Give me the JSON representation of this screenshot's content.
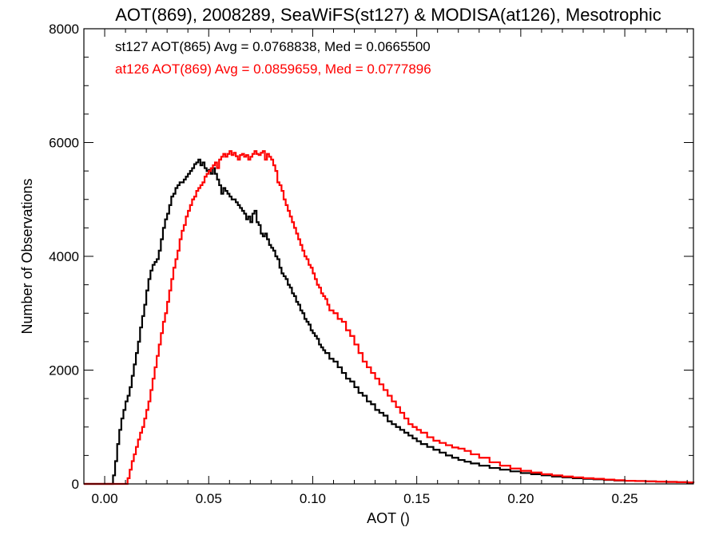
{
  "chart_data": {
    "type": "line",
    "title": "AOT(869), 2008289, SeaWiFS(st127) & MODISA(at126), Mesotrophic",
    "xlabel": "AOT ()",
    "ylabel": "Number of Observations",
    "xlim": [
      -0.01,
      0.283
    ],
    "ylim": [
      0,
      8000
    ],
    "x_ticks": [
      0.0,
      0.05,
      0.1,
      0.15,
      0.2,
      0.25
    ],
    "x_tick_labels": [
      "0.00",
      "0.05",
      "0.10",
      "0.15",
      "0.20",
      "0.25"
    ],
    "y_ticks": [
      0,
      2000,
      4000,
      6000,
      8000
    ],
    "y_tick_labels": [
      "0",
      "2000",
      "4000",
      "6000",
      "8000"
    ],
    "grid": false,
    "step": true,
    "legend_placement": "top-left",
    "series": [
      {
        "name": "st127",
        "legend_text": "st127 AOT(865) Avg = 0.0768838, Med = 0.0665500",
        "color": "#000000",
        "points": [
          [
            -0.01,
            0
          ],
          [
            0.003,
            0
          ],
          [
            0.004,
            150
          ],
          [
            0.005,
            400
          ],
          [
            0.006,
            700
          ],
          [
            0.007,
            950
          ],
          [
            0.008,
            1150
          ],
          [
            0.009,
            1300
          ],
          [
            0.01,
            1450
          ],
          [
            0.011,
            1550
          ],
          [
            0.012,
            1700
          ],
          [
            0.013,
            1900
          ],
          [
            0.014,
            2100
          ],
          [
            0.015,
            2300
          ],
          [
            0.016,
            2500
          ],
          [
            0.017,
            2750
          ],
          [
            0.018,
            2950
          ],
          [
            0.019,
            3150
          ],
          [
            0.02,
            3400
          ],
          [
            0.021,
            3600
          ],
          [
            0.022,
            3750
          ],
          [
            0.023,
            3850
          ],
          [
            0.024,
            3900
          ],
          [
            0.025,
            3950
          ],
          [
            0.026,
            4100
          ],
          [
            0.027,
            4300
          ],
          [
            0.028,
            4500
          ],
          [
            0.029,
            4650
          ],
          [
            0.03,
            4750
          ],
          [
            0.031,
            4900
          ],
          [
            0.032,
            5050
          ],
          [
            0.033,
            5100
          ],
          [
            0.034,
            5200
          ],
          [
            0.035,
            5250
          ],
          [
            0.036,
            5300
          ],
          [
            0.037,
            5300
          ],
          [
            0.038,
            5350
          ],
          [
            0.039,
            5400
          ],
          [
            0.04,
            5450
          ],
          [
            0.041,
            5500
          ],
          [
            0.042,
            5550
          ],
          [
            0.043,
            5620
          ],
          [
            0.044,
            5650
          ],
          [
            0.045,
            5700
          ],
          [
            0.046,
            5600
          ],
          [
            0.047,
            5650
          ],
          [
            0.048,
            5550
          ],
          [
            0.049,
            5500
          ],
          [
            0.05,
            5520
          ],
          [
            0.051,
            5450
          ],
          [
            0.052,
            5550
          ],
          [
            0.053,
            5450
          ],
          [
            0.054,
            5350
          ],
          [
            0.055,
            5250
          ],
          [
            0.056,
            5100
          ],
          [
            0.057,
            5200
          ],
          [
            0.058,
            5150
          ],
          [
            0.059,
            5100
          ],
          [
            0.06,
            5050
          ],
          [
            0.061,
            5000
          ],
          [
            0.062,
            5000
          ],
          [
            0.063,
            4950
          ],
          [
            0.064,
            4900
          ],
          [
            0.065,
            4850
          ],
          [
            0.066,
            4800
          ],
          [
            0.067,
            4750
          ],
          [
            0.068,
            4650
          ],
          [
            0.069,
            4700
          ],
          [
            0.07,
            4600
          ],
          [
            0.071,
            4750
          ],
          [
            0.072,
            4800
          ],
          [
            0.073,
            4600
          ],
          [
            0.074,
            4550
          ],
          [
            0.075,
            4400
          ],
          [
            0.076,
            4350
          ],
          [
            0.077,
            4400
          ],
          [
            0.078,
            4300
          ],
          [
            0.079,
            4200
          ],
          [
            0.08,
            4150
          ],
          [
            0.081,
            4100
          ],
          [
            0.082,
            4000
          ],
          [
            0.083,
            3950
          ],
          [
            0.084,
            3800
          ],
          [
            0.085,
            3700
          ],
          [
            0.086,
            3650
          ],
          [
            0.087,
            3600
          ],
          [
            0.088,
            3500
          ],
          [
            0.089,
            3450
          ],
          [
            0.09,
            3350
          ],
          [
            0.091,
            3300
          ],
          [
            0.092,
            3200
          ],
          [
            0.093,
            3150
          ],
          [
            0.094,
            3050
          ],
          [
            0.095,
            3000
          ],
          [
            0.096,
            2900
          ],
          [
            0.097,
            2850
          ],
          [
            0.098,
            2800
          ],
          [
            0.099,
            2700
          ],
          [
            0.1,
            2650
          ],
          [
            0.101,
            2600
          ],
          [
            0.102,
            2550
          ],
          [
            0.103,
            2450
          ],
          [
            0.104,
            2400
          ],
          [
            0.105,
            2350
          ],
          [
            0.106,
            2300
          ],
          [
            0.108,
            2200
          ],
          [
            0.11,
            2150
          ],
          [
            0.112,
            2050
          ],
          [
            0.114,
            1950
          ],
          [
            0.116,
            1850
          ],
          [
            0.118,
            1800
          ],
          [
            0.12,
            1700
          ],
          [
            0.122,
            1600
          ],
          [
            0.124,
            1550
          ],
          [
            0.126,
            1450
          ],
          [
            0.128,
            1400
          ],
          [
            0.13,
            1300
          ],
          [
            0.132,
            1250
          ],
          [
            0.134,
            1200
          ],
          [
            0.136,
            1100
          ],
          [
            0.138,
            1050
          ],
          [
            0.14,
            1000
          ],
          [
            0.142,
            950
          ],
          [
            0.144,
            900
          ],
          [
            0.146,
            850
          ],
          [
            0.148,
            800
          ],
          [
            0.15,
            750
          ],
          [
            0.152,
            700
          ],
          [
            0.155,
            650
          ],
          [
            0.158,
            600
          ],
          [
            0.161,
            550
          ],
          [
            0.164,
            500
          ],
          [
            0.167,
            460
          ],
          [
            0.17,
            420
          ],
          [
            0.173,
            390
          ],
          [
            0.176,
            360
          ],
          [
            0.18,
            320
          ],
          [
            0.185,
            280
          ],
          [
            0.19,
            250
          ],
          [
            0.195,
            220
          ],
          [
            0.2,
            190
          ],
          [
            0.205,
            170
          ],
          [
            0.21,
            150
          ],
          [
            0.215,
            130
          ],
          [
            0.22,
            115
          ],
          [
            0.225,
            100
          ],
          [
            0.23,
            90
          ],
          [
            0.235,
            80
          ],
          [
            0.24,
            70
          ],
          [
            0.245,
            60
          ],
          [
            0.25,
            55
          ],
          [
            0.255,
            50
          ],
          [
            0.26,
            45
          ],
          [
            0.265,
            40
          ],
          [
            0.27,
            35
          ],
          [
            0.275,
            30
          ],
          [
            0.28,
            25
          ],
          [
            0.283,
            20
          ]
        ]
      },
      {
        "name": "at126",
        "legend_text": "at126 AOT(869) Avg = 0.0859659, Med = 0.0777896",
        "color": "#ff0000",
        "points": [
          [
            -0.01,
            0
          ],
          [
            0.01,
            0
          ],
          [
            0.011,
            100
          ],
          [
            0.012,
            250
          ],
          [
            0.013,
            400
          ],
          [
            0.014,
            520
          ],
          [
            0.015,
            650
          ],
          [
            0.016,
            780
          ],
          [
            0.017,
            900
          ],
          [
            0.018,
            1000
          ],
          [
            0.019,
            1150
          ],
          [
            0.02,
            1300
          ],
          [
            0.021,
            1450
          ],
          [
            0.022,
            1650
          ],
          [
            0.023,
            1850
          ],
          [
            0.024,
            2050
          ],
          [
            0.025,
            2250
          ],
          [
            0.026,
            2450
          ],
          [
            0.027,
            2650
          ],
          [
            0.028,
            2850
          ],
          [
            0.029,
            3000
          ],
          [
            0.03,
            3200
          ],
          [
            0.031,
            3400
          ],
          [
            0.032,
            3600
          ],
          [
            0.033,
            3800
          ],
          [
            0.034,
            3950
          ],
          [
            0.035,
            4100
          ],
          [
            0.036,
            4300
          ],
          [
            0.037,
            4450
          ],
          [
            0.038,
            4550
          ],
          [
            0.039,
            4700
          ],
          [
            0.04,
            4800
          ],
          [
            0.041,
            4900
          ],
          [
            0.042,
            5000
          ],
          [
            0.043,
            5050
          ],
          [
            0.044,
            5150
          ],
          [
            0.045,
            5200
          ],
          [
            0.046,
            5250
          ],
          [
            0.047,
            5300
          ],
          [
            0.048,
            5400
          ],
          [
            0.049,
            5450
          ],
          [
            0.05,
            5500
          ],
          [
            0.051,
            5550
          ],
          [
            0.052,
            5600
          ],
          [
            0.053,
            5650
          ],
          [
            0.054,
            5550
          ],
          [
            0.055,
            5700
          ],
          [
            0.056,
            5750
          ],
          [
            0.057,
            5800
          ],
          [
            0.058,
            5750
          ],
          [
            0.059,
            5800
          ],
          [
            0.06,
            5850
          ],
          [
            0.061,
            5780
          ],
          [
            0.062,
            5820
          ],
          [
            0.063,
            5760
          ],
          [
            0.064,
            5700
          ],
          [
            0.065,
            5780
          ],
          [
            0.066,
            5800
          ],
          [
            0.067,
            5750
          ],
          [
            0.068,
            5780
          ],
          [
            0.069,
            5700
          ],
          [
            0.07,
            5750
          ],
          [
            0.071,
            5800
          ],
          [
            0.072,
            5850
          ],
          [
            0.073,
            5800
          ],
          [
            0.074,
            5780
          ],
          [
            0.075,
            5820
          ],
          [
            0.076,
            5850
          ],
          [
            0.077,
            5700
          ],
          [
            0.078,
            5800
          ],
          [
            0.079,
            5750
          ],
          [
            0.08,
            5700
          ],
          [
            0.081,
            5600
          ],
          [
            0.082,
            5500
          ],
          [
            0.083,
            5300
          ],
          [
            0.084,
            5250
          ],
          [
            0.085,
            5150
          ],
          [
            0.086,
            5000
          ],
          [
            0.087,
            4900
          ],
          [
            0.088,
            4800
          ],
          [
            0.089,
            4700
          ],
          [
            0.09,
            4600
          ],
          [
            0.091,
            4500
          ],
          [
            0.092,
            4400
          ],
          [
            0.093,
            4300
          ],
          [
            0.094,
            4200
          ],
          [
            0.095,
            4100
          ],
          [
            0.096,
            4000
          ],
          [
            0.097,
            3950
          ],
          [
            0.098,
            3850
          ],
          [
            0.099,
            3800
          ],
          [
            0.1,
            3700
          ],
          [
            0.101,
            3600
          ],
          [
            0.102,
            3500
          ],
          [
            0.103,
            3450
          ],
          [
            0.104,
            3350
          ],
          [
            0.105,
            3300
          ],
          [
            0.106,
            3250
          ],
          [
            0.107,
            3150
          ],
          [
            0.108,
            3050
          ],
          [
            0.11,
            3000
          ],
          [
            0.112,
            2900
          ],
          [
            0.114,
            2850
          ],
          [
            0.116,
            2700
          ],
          [
            0.118,
            2600
          ],
          [
            0.12,
            2450
          ],
          [
            0.122,
            2300
          ],
          [
            0.124,
            2150
          ],
          [
            0.126,
            2050
          ],
          [
            0.128,
            1950
          ],
          [
            0.13,
            1850
          ],
          [
            0.132,
            1750
          ],
          [
            0.134,
            1650
          ],
          [
            0.136,
            1550
          ],
          [
            0.138,
            1450
          ],
          [
            0.14,
            1350
          ],
          [
            0.142,
            1250
          ],
          [
            0.144,
            1150
          ],
          [
            0.146,
            1050
          ],
          [
            0.148,
            1000
          ],
          [
            0.15,
            950
          ],
          [
            0.152,
            900
          ],
          [
            0.155,
            820
          ],
          [
            0.158,
            760
          ],
          [
            0.161,
            720
          ],
          [
            0.164,
            680
          ],
          [
            0.167,
            640
          ],
          [
            0.17,
            620
          ],
          [
            0.173,
            580
          ],
          [
            0.176,
            520
          ],
          [
            0.18,
            460
          ],
          [
            0.185,
            380
          ],
          [
            0.19,
            320
          ],
          [
            0.195,
            270
          ],
          [
            0.2,
            230
          ],
          [
            0.205,
            200
          ],
          [
            0.21,
            170
          ],
          [
            0.215,
            150
          ],
          [
            0.22,
            130
          ],
          [
            0.225,
            115
          ],
          [
            0.23,
            100
          ],
          [
            0.235,
            90
          ],
          [
            0.24,
            75
          ],
          [
            0.245,
            65
          ],
          [
            0.25,
            55
          ],
          [
            0.255,
            50
          ],
          [
            0.26,
            45
          ],
          [
            0.265,
            40
          ],
          [
            0.27,
            35
          ],
          [
            0.275,
            30
          ],
          [
            0.28,
            25
          ],
          [
            0.283,
            20
          ]
        ]
      }
    ]
  }
}
